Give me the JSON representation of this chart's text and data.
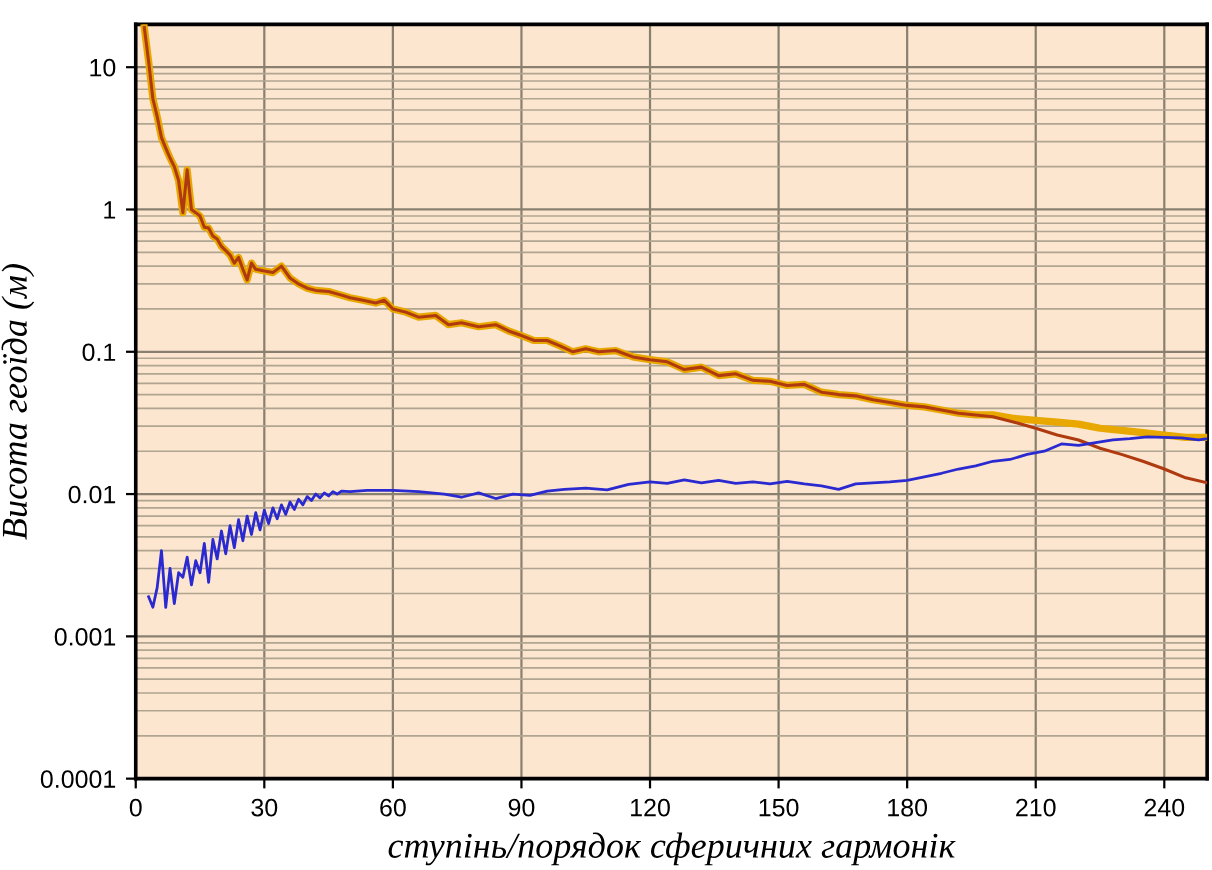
{
  "chart_data": {
    "type": "line",
    "xlabel": "ступінь/порядок сферичних гармонік",
    "ylabel": "Висота геоїда (м)",
    "log": "y",
    "grid": true,
    "xlim": [
      0,
      250
    ],
    "xticks": [
      0,
      30,
      60,
      90,
      120,
      150,
      180,
      210,
      240
    ],
    "ylim": [
      0.0001,
      20
    ],
    "yticks": [
      0.0001,
      0.001,
      0.01,
      0.1,
      1,
      10
    ],
    "series": [
      {
        "color": "#e8a800",
        "x": [
          2,
          3,
          4,
          5,
          6,
          7,
          8,
          9,
          10,
          11,
          12,
          13,
          14,
          15,
          16,
          17,
          18,
          19,
          20,
          22,
          23,
          24,
          25,
          26,
          27,
          28,
          30,
          32,
          34,
          36,
          38,
          40,
          42,
          45,
          48,
          50,
          53,
          56,
          58,
          60,
          63,
          66,
          70,
          73,
          76,
          80,
          84,
          87,
          90,
          93,
          96,
          99,
          102,
          105,
          108,
          112,
          116,
          120,
          124,
          128,
          132,
          136,
          140,
          144,
          148,
          152,
          156,
          160,
          164,
          168,
          172,
          176,
          180,
          184,
          188,
          192,
          196,
          200,
          205,
          210,
          215,
          220,
          225,
          230,
          235,
          240,
          245,
          250
        ],
        "values": [
          19,
          11,
          6.0,
          4.5,
          3.2,
          2.7,
          2.3,
          2.0,
          1.6,
          0.95,
          1.9,
          1.0,
          0.95,
          0.9,
          0.75,
          0.74,
          0.65,
          0.62,
          0.55,
          0.48,
          0.42,
          0.46,
          0.38,
          0.32,
          0.42,
          0.38,
          0.37,
          0.36,
          0.4,
          0.33,
          0.3,
          0.28,
          0.27,
          0.265,
          0.25,
          0.24,
          0.23,
          0.22,
          0.23,
          0.2,
          0.19,
          0.175,
          0.18,
          0.155,
          0.16,
          0.15,
          0.155,
          0.14,
          0.13,
          0.12,
          0.12,
          0.11,
          0.1,
          0.105,
          0.1,
          0.102,
          0.092,
          0.088,
          0.085,
          0.075,
          0.078,
          0.068,
          0.07,
          0.063,
          0.062,
          0.058,
          0.059,
          0.052,
          0.05,
          0.049,
          0.046,
          0.044,
          0.042,
          0.041,
          0.039,
          0.037,
          0.036,
          0.036,
          0.034,
          0.033,
          0.032,
          0.031,
          0.029,
          0.028,
          0.027,
          0.026,
          0.025,
          0.025
        ]
      },
      {
        "color": "#b03a10",
        "x": [
          2,
          3,
          4,
          5,
          6,
          7,
          8,
          9,
          10,
          11,
          12,
          13,
          14,
          15,
          16,
          17,
          18,
          19,
          20,
          22,
          23,
          24,
          25,
          26,
          27,
          28,
          30,
          32,
          34,
          36,
          38,
          40,
          42,
          45,
          48,
          50,
          53,
          56,
          58,
          60,
          63,
          66,
          70,
          73,
          76,
          80,
          84,
          87,
          90,
          93,
          96,
          99,
          102,
          105,
          108,
          112,
          116,
          120,
          124,
          128,
          132,
          136,
          140,
          144,
          148,
          152,
          156,
          160,
          164,
          168,
          172,
          176,
          180,
          184,
          188,
          192,
          196,
          200,
          205,
          210,
          215,
          220,
          225,
          230,
          235,
          240,
          245,
          250
        ],
        "values": [
          19,
          11,
          6.0,
          4.5,
          3.2,
          2.7,
          2.3,
          2.0,
          1.6,
          0.95,
          1.9,
          1.0,
          0.95,
          0.9,
          0.75,
          0.74,
          0.65,
          0.62,
          0.55,
          0.48,
          0.42,
          0.46,
          0.38,
          0.32,
          0.42,
          0.38,
          0.37,
          0.36,
          0.4,
          0.33,
          0.3,
          0.28,
          0.27,
          0.265,
          0.25,
          0.24,
          0.23,
          0.22,
          0.23,
          0.2,
          0.19,
          0.175,
          0.18,
          0.155,
          0.16,
          0.15,
          0.155,
          0.14,
          0.13,
          0.12,
          0.12,
          0.11,
          0.1,
          0.105,
          0.1,
          0.102,
          0.092,
          0.088,
          0.085,
          0.075,
          0.078,
          0.068,
          0.07,
          0.063,
          0.062,
          0.058,
          0.059,
          0.052,
          0.05,
          0.049,
          0.046,
          0.044,
          0.042,
          0.041,
          0.039,
          0.037,
          0.036,
          0.035,
          0.032,
          0.029,
          0.026,
          0.024,
          0.021,
          0.019,
          0.017,
          0.015,
          0.013,
          0.012
        ]
      },
      {
        "color": "#2a2ad0",
        "x": [
          3,
          4,
          5,
          6,
          7,
          8,
          9,
          10,
          11,
          12,
          13,
          14,
          15,
          16,
          17,
          18,
          19,
          20,
          21,
          22,
          23,
          24,
          25,
          26,
          27,
          28,
          29,
          30,
          31,
          32,
          33,
          34,
          35,
          36,
          37,
          38,
          39,
          40,
          41,
          42,
          43,
          44,
          45,
          46,
          47,
          48,
          50,
          54,
          60,
          66,
          72,
          76,
          80,
          84,
          88,
          92,
          96,
          100,
          105,
          110,
          115,
          120,
          124,
          128,
          132,
          136,
          140,
          144,
          148,
          152,
          156,
          160,
          164,
          168,
          172,
          176,
          180,
          184,
          188,
          192,
          196,
          200,
          204,
          208,
          212,
          216,
          220,
          224,
          228,
          232,
          236,
          240,
          244,
          248,
          250
        ],
        "values": [
          0.0019,
          0.0016,
          0.0022,
          0.004,
          0.0016,
          0.003,
          0.0017,
          0.0028,
          0.0026,
          0.0036,
          0.0023,
          0.0034,
          0.0028,
          0.0045,
          0.0024,
          0.0048,
          0.0035,
          0.0055,
          0.0038,
          0.006,
          0.0042,
          0.0066,
          0.0047,
          0.007,
          0.0052,
          0.0074,
          0.0056,
          0.0077,
          0.0062,
          0.008,
          0.0067,
          0.0084,
          0.0072,
          0.0088,
          0.0078,
          0.0092,
          0.0084,
          0.0096,
          0.009,
          0.01,
          0.0094,
          0.0102,
          0.0097,
          0.0104,
          0.01,
          0.0105,
          0.0104,
          0.0106,
          0.0106,
          0.0104,
          0.01,
          0.0095,
          0.0102,
          0.0093,
          0.01,
          0.0098,
          0.0105,
          0.0108,
          0.011,
          0.0107,
          0.0117,
          0.0122,
          0.0119,
          0.0126,
          0.012,
          0.0125,
          0.0119,
          0.0122,
          0.0118,
          0.0123,
          0.0118,
          0.0114,
          0.0108,
          0.0118,
          0.012,
          0.0122,
          0.0125,
          0.0132,
          0.014,
          0.015,
          0.0158,
          0.017,
          0.0175,
          0.019,
          0.02,
          0.0225,
          0.022,
          0.023,
          0.024,
          0.0245,
          0.0252,
          0.025,
          0.0248,
          0.024,
          0.0245
        ]
      }
    ]
  }
}
